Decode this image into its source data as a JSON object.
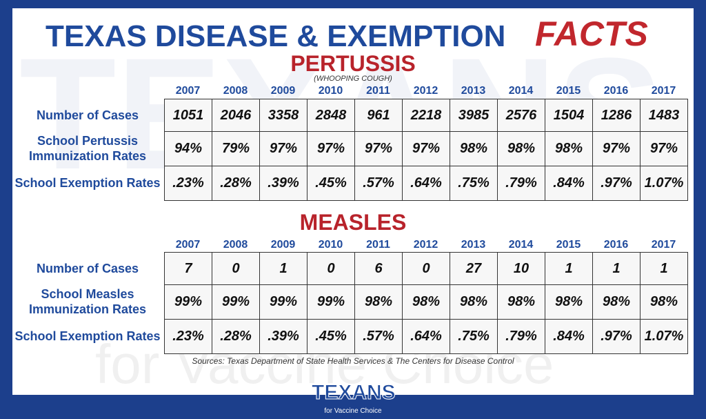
{
  "header": {
    "title": "TEXAS DISEASE & EXEMPTION",
    "title_emphasis": "FACTS"
  },
  "sections": [
    {
      "title": "PERTUSSIS",
      "subtitle": "(WHOOPING COUGH)",
      "years": [
        "2007",
        "2008",
        "2009",
        "2010",
        "2011",
        "2012",
        "2013",
        "2014",
        "2015",
        "2016",
        "2017"
      ],
      "rows": [
        {
          "label": "Number of Cases",
          "values": [
            "1051",
            "2046",
            "3358",
            "2848",
            "961",
            "2218",
            "3985",
            "2576",
            "1504",
            "1286",
            "1483"
          ]
        },
        {
          "label": "School Pertussis Immunization Rates",
          "values": [
            "94%",
            "79%",
            "97%",
            "97%",
            "97%",
            "97%",
            "98%",
            "98%",
            "98%",
            "97%",
            "97%"
          ]
        },
        {
          "label": "School Exemption Rates",
          "values": [
            ".23%",
            ".28%",
            ".39%",
            ".45%",
            ".57%",
            ".64%",
            ".75%",
            ".79%",
            ".84%",
            ".97%",
            "1.07%"
          ]
        }
      ]
    },
    {
      "title": "MEASLES",
      "years": [
        "2007",
        "2008",
        "2009",
        "2010",
        "2011",
        "2012",
        "2013",
        "2014",
        "2015",
        "2016",
        "2017"
      ],
      "rows": [
        {
          "label": "Number of Cases",
          "values": [
            "7",
            "0",
            "1",
            "0",
            "6",
            "0",
            "27",
            "10",
            "1",
            "1",
            "1"
          ]
        },
        {
          "label": "School Measles Immunization Rates",
          "values": [
            "99%",
            "99%",
            "99%",
            "99%",
            "98%",
            "98%",
            "98%",
            "98%",
            "98%",
            "98%",
            "98%"
          ]
        },
        {
          "label": "School Exemption Rates",
          "values": [
            ".23%",
            ".28%",
            ".39%",
            ".45%",
            ".57%",
            ".64%",
            ".75%",
            ".79%",
            ".84%",
            ".97%",
            "1.07%"
          ]
        }
      ]
    }
  ],
  "source": "Sources: Texas Department of State Health Services & The Centers for Disease Control",
  "logo": {
    "name": "TEXANS",
    "tagline": "for Vaccine Choice"
  }
}
